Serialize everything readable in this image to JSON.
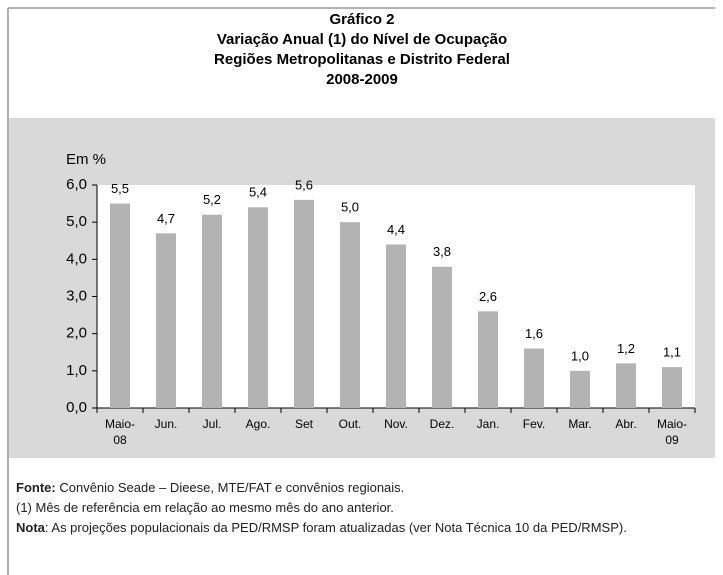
{
  "chart_data": {
    "type": "bar",
    "title": [
      "Gráfico 2",
      "Variação Anual (1) do Nível de Ocupação",
      "Regiões Metropolitanas e Distrito Federal",
      "2008-2009"
    ],
    "y_label": "Em %",
    "categories": [
      "Maio-08",
      "Jun.",
      "Jul.",
      "Ago.",
      "Set",
      "Out.",
      "Nov.",
      "Dez.",
      "Jan.",
      "Fev.",
      "Mar.",
      "Abr.",
      "Maio-09"
    ],
    "values": [
      5.5,
      4.7,
      5.2,
      5.4,
      5.6,
      5.0,
      4.4,
      3.8,
      2.6,
      1.6,
      1.0,
      1.2,
      1.1
    ],
    "value_labels": [
      "5,5",
      "4,7",
      "5,2",
      "5,4",
      "5,6",
      "5,0",
      "4,4",
      "3,8",
      "2,6",
      "1,6",
      "1,0",
      "1,2",
      "1,1"
    ],
    "color": "#b3b3b3",
    "ylim": [
      0,
      6
    ],
    "yticks": [
      {
        "value": 0,
        "label": "0,0"
      },
      {
        "value": 1,
        "label": "1,0"
      },
      {
        "value": 2,
        "label": "2,0"
      },
      {
        "value": 3,
        "label": "3,0"
      },
      {
        "value": 4,
        "label": "4,0"
      },
      {
        "value": 5,
        "label": "5,0"
      },
      {
        "value": 6,
        "label": "6,0"
      }
    ],
    "grid": false
  },
  "footer": {
    "source_label": "Fonte:",
    "source": "Convênio Seade – Dieese, MTE/FAT e convênios regionais.",
    "note1": "(1) Mês de referência em relação ao mesmo mês do ano anterior.",
    "note_label": "Nota",
    "note": ": As projeções populacionais da PED/RMSP foram atualizadas (ver Nota Técnica 10 da PED/RMSP)."
  }
}
